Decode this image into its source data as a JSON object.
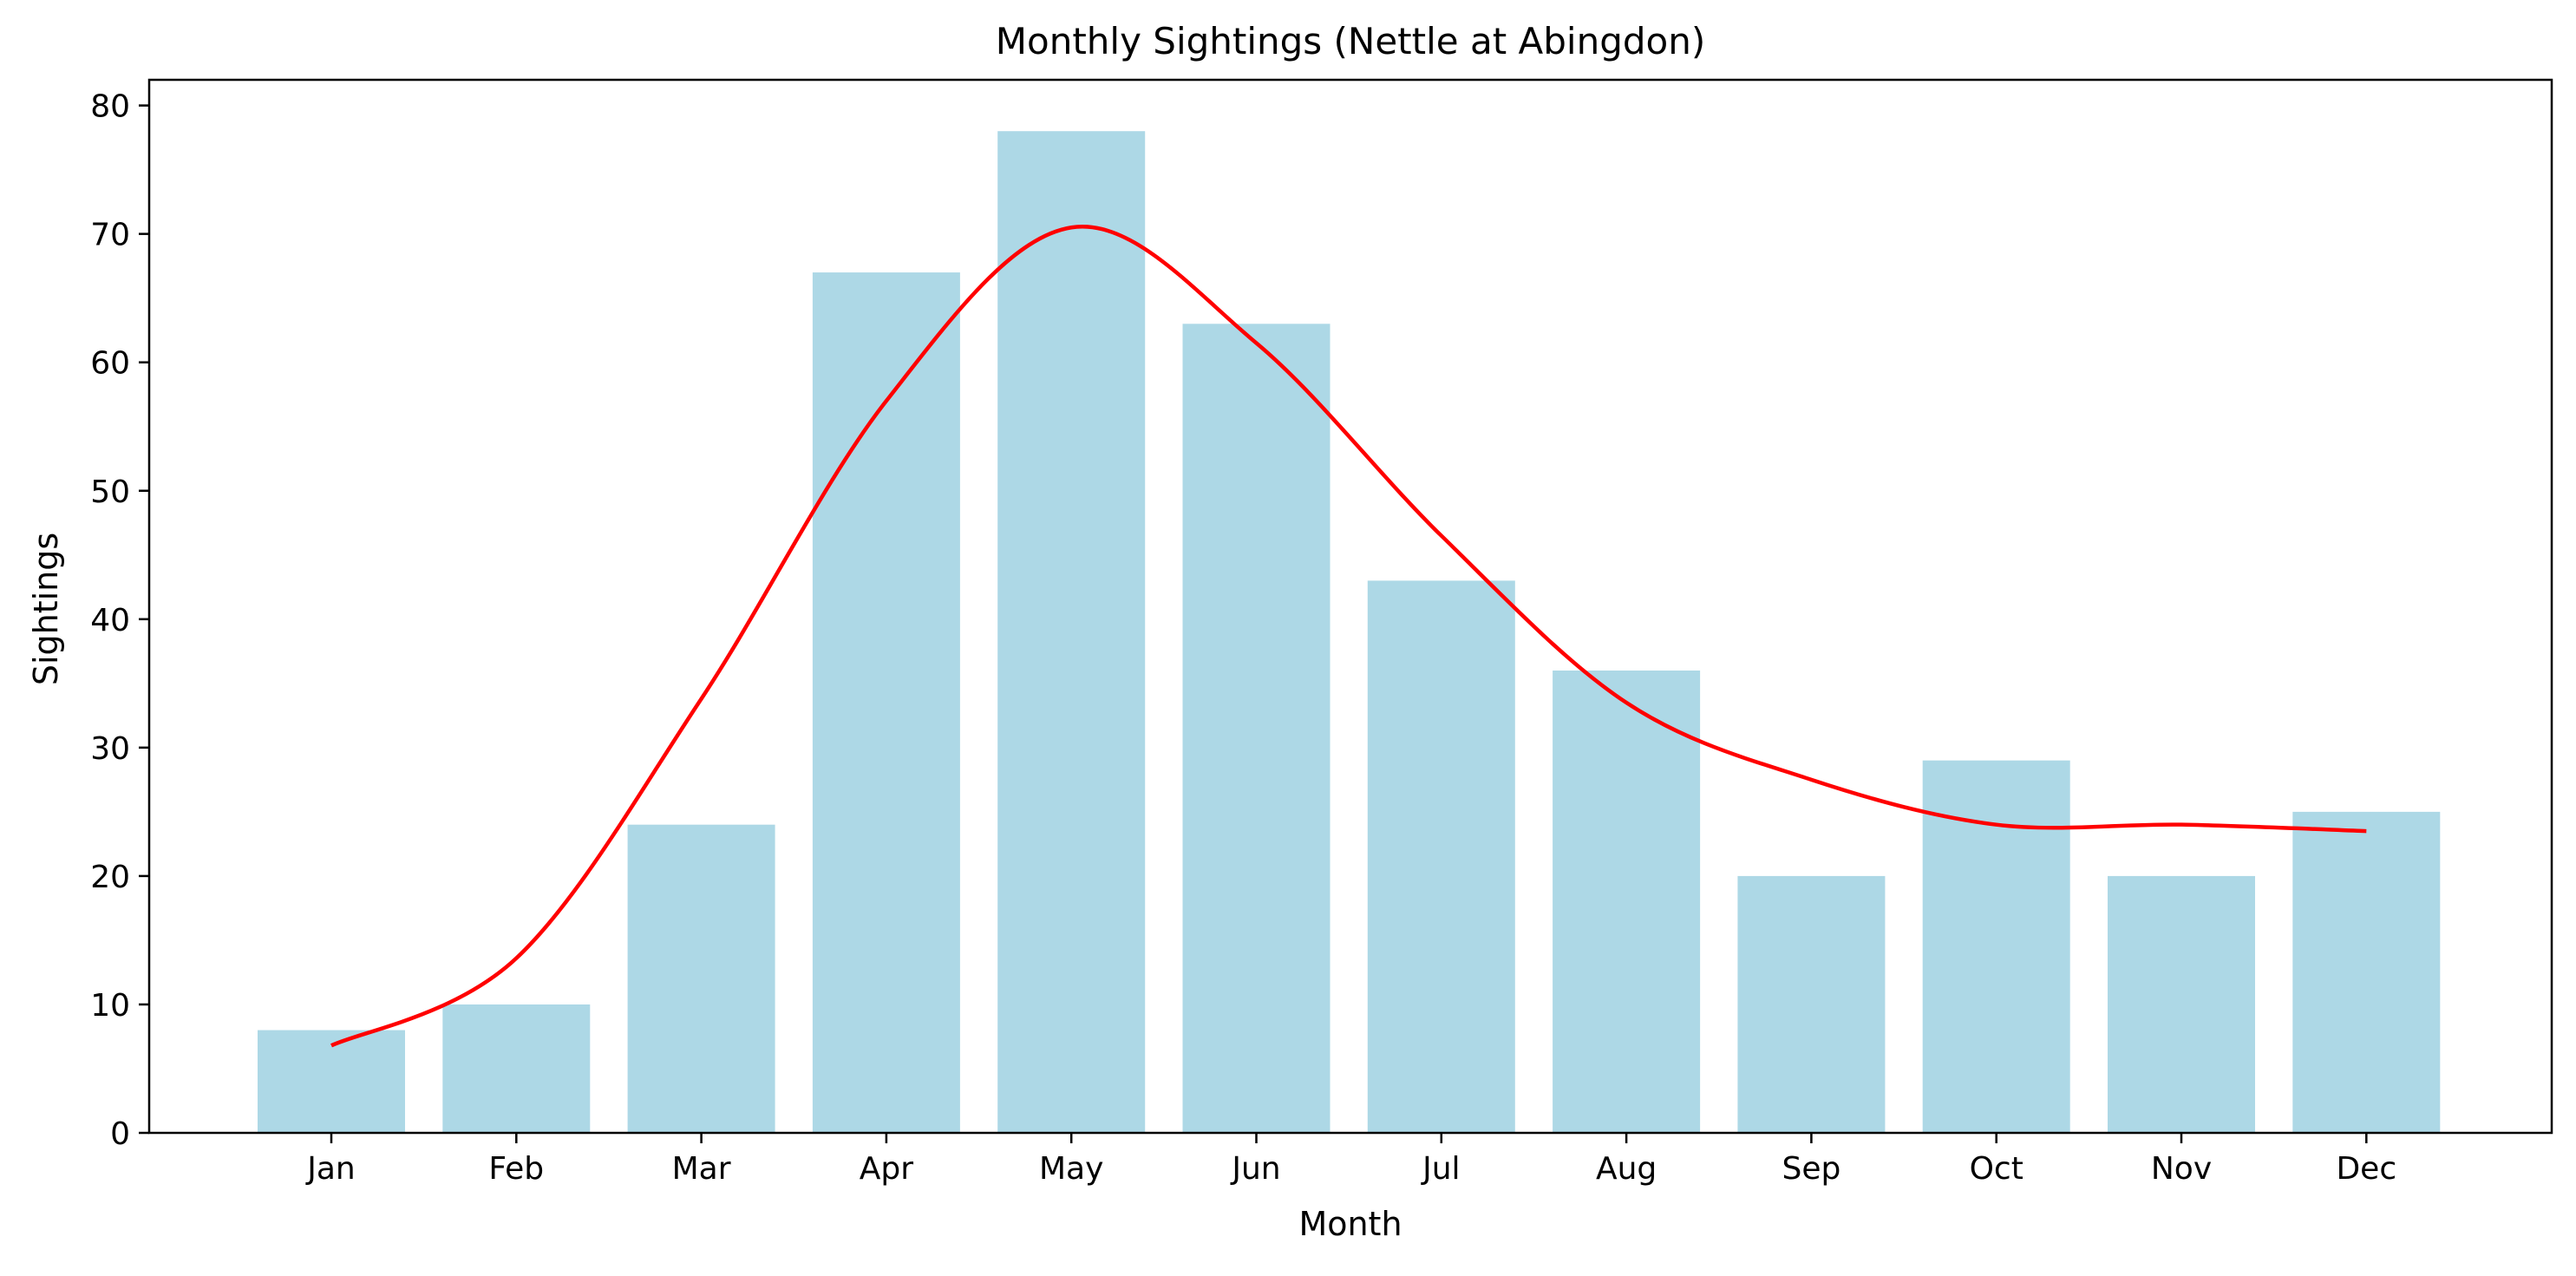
{
  "chart_data": {
    "type": "bar",
    "title": "Monthly Sightings (Nettle at Abingdon)",
    "xlabel": "Month",
    "ylabel": "Sightings",
    "categories": [
      "Jan",
      "Feb",
      "Mar",
      "Apr",
      "May",
      "Jun",
      "Jul",
      "Aug",
      "Sep",
      "Oct",
      "Nov",
      "Dec"
    ],
    "series": [
      {
        "type": "bar",
        "values": [
          8,
          10,
          24,
          67,
          78,
          63,
          43,
          36,
          20,
          29,
          20,
          25
        ],
        "color": "#add8e6"
      },
      {
        "type": "line",
        "values": [
          6.8,
          13.6,
          33.8,
          57.0,
          70.5,
          61.5,
          46.5,
          33.5,
          27.5,
          24.0,
          24.0,
          23.5
        ],
        "color": "#ff0000"
      }
    ],
    "ylim": [
      0,
      82
    ],
    "yticks": [
      "0",
      "10",
      "20",
      "30",
      "40",
      "50",
      "60",
      "70",
      "80"
    ],
    "grid": false,
    "legend": "none"
  }
}
